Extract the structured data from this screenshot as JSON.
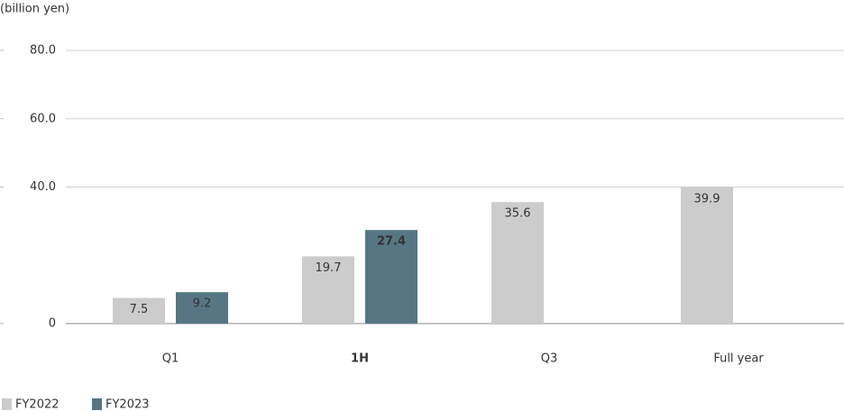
{
  "chart_data": {
    "type": "bar",
    "y_label": "(billion yen)",
    "categories": [
      "Q1",
      "1H",
      "Q3",
      "Full year"
    ],
    "series": [
      {
        "name": "FY2022",
        "color": "#cccccc",
        "values": [
          7.5,
          19.7,
          35.6,
          39.9
        ]
      },
      {
        "name": "FY2023",
        "color": "#567684",
        "values": [
          9.2,
          27.4,
          null,
          null
        ]
      }
    ],
    "ylim": [
      0,
      80
    ],
    "yticks": [
      0,
      {
        "value": 40,
        "label": "40.0"
      },
      {
        "value": 60,
        "label": "60.0"
      },
      {
        "value": 80,
        "label": "80.0"
      }
    ],
    "grid": true
  }
}
